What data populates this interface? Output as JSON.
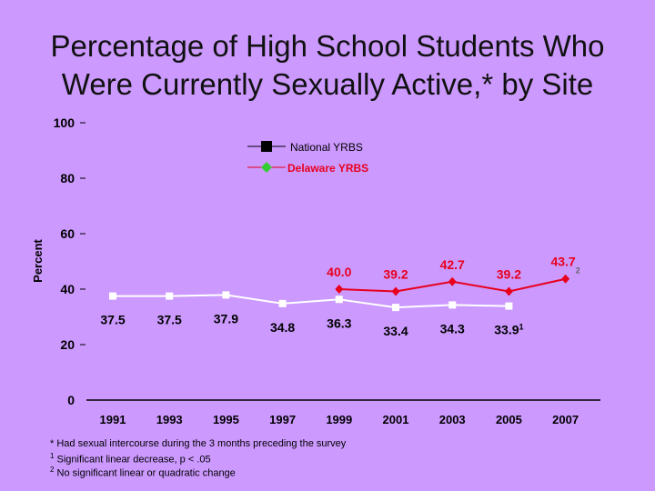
{
  "title_line1": "Percentage of High School Students Who",
  "title_line2": "Were Currently Sexually Active,* by Site",
  "chart_data": {
    "type": "line",
    "ylabel": "Percent",
    "xlabel": "",
    "ylim": [
      0,
      100
    ],
    "yticks": [
      "0",
      "20",
      "40",
      "60",
      "80",
      "100"
    ],
    "x": [
      "1991",
      "1993",
      "1995",
      "1997",
      "1999",
      "2001",
      "2003",
      "2005",
      "2007"
    ],
    "legend_position": "top-center",
    "series": [
      {
        "name": "National YRBS",
        "color": "#ffffff",
        "marker": "square",
        "values": [
          37.5,
          37.5,
          37.9,
          34.8,
          36.3,
          33.4,
          34.3,
          33.9,
          null
        ],
        "labels": [
          "37.5",
          "37.5",
          "37.9",
          "34.8",
          "36.3",
          "33.4",
          "34.3",
          "33.9",
          ""
        ],
        "label_superscripts": [
          "",
          "",
          "",
          "",
          "",
          "",
          "",
          "1",
          ""
        ]
      },
      {
        "name": "Delaware YRBS",
        "color": "#e8001c",
        "marker": "diamond",
        "values": [
          null,
          null,
          null,
          null,
          40.0,
          39.2,
          42.7,
          39.2,
          43.7
        ],
        "labels": [
          "",
          "",
          "",
          "",
          "40.0",
          "39.2",
          "42.7",
          "39.2",
          "43.7"
        ],
        "label_superscripts": [
          "",
          "",
          "",
          "",
          "",
          "",
          "",
          "",
          "2"
        ]
      }
    ],
    "legend_marker_colors": {
      "national": "#000000",
      "delaware": "#33cc33"
    }
  },
  "footnotes": {
    "star": "* Had sexual intercourse during the 3 months preceding the survey",
    "one_mark": "1",
    "one_text": " Significant linear decrease, p < .05",
    "two_mark": "2",
    "two_text": " No significant linear or quadratic change"
  }
}
